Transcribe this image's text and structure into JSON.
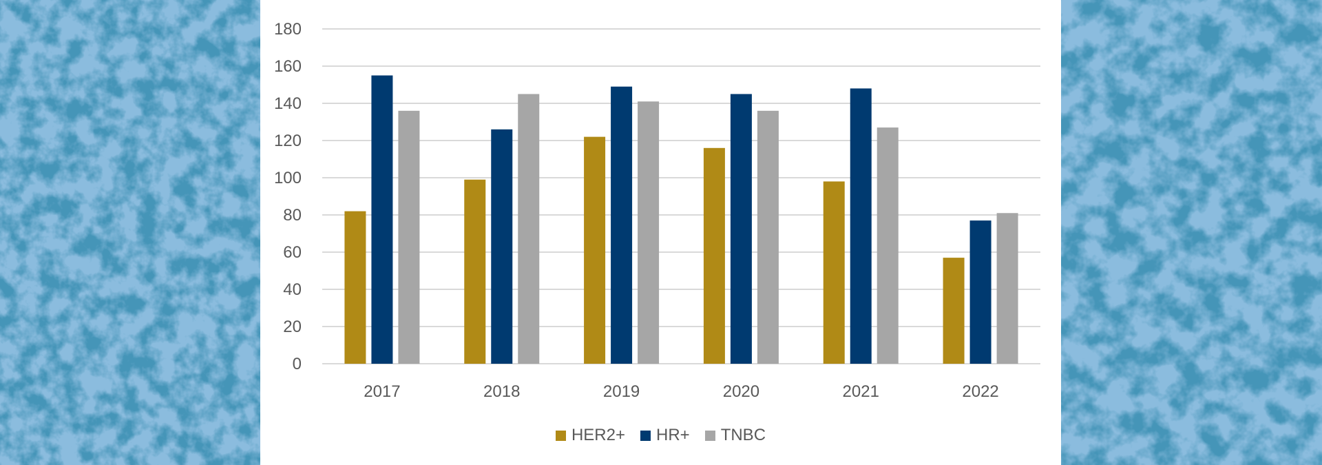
{
  "chart_data": {
    "type": "bar",
    "title": "",
    "xlabel": "",
    "ylabel": "",
    "ylim": [
      0,
      180
    ],
    "yticks": [
      0,
      20,
      40,
      60,
      80,
      100,
      120,
      140,
      160,
      180
    ],
    "grid": true,
    "legend_position": "bottom",
    "categories": [
      "2017",
      "2018",
      "2019",
      "2020",
      "2021",
      "2022"
    ],
    "series": [
      {
        "name": "HER2+",
        "color": "#b08a16",
        "values": [
          82,
          99,
          122,
          116,
          98,
          57
        ]
      },
      {
        "name": "HR+",
        "color": "#003a70",
        "values": [
          155,
          126,
          149,
          145,
          148,
          77
        ]
      },
      {
        "name": "TNBC",
        "color": "#a6a6a6",
        "values": [
          136,
          145,
          141,
          136,
          127,
          81
        ]
      }
    ]
  },
  "colors": {
    "background_tint": "#8bbcde",
    "panel": "#ffffff",
    "gridline": "#d9d9d9",
    "text": "#595959"
  }
}
